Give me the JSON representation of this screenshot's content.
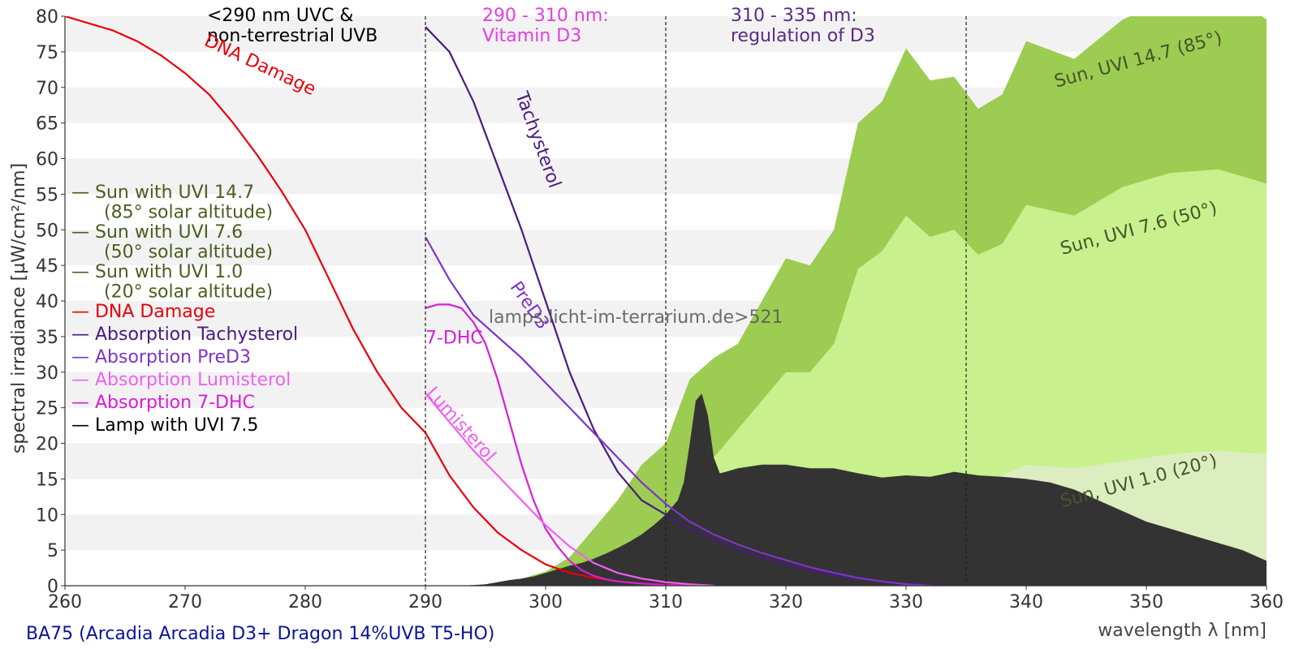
{
  "chart_data": {
    "type": "area",
    "xlabel": "wavelength λ [nm]",
    "ylabel": "spectral irradiance [µW/cm²/nm]",
    "xlim": [
      260,
      360
    ],
    "ylim": [
      0,
      80
    ],
    "xticks": [
      260,
      270,
      280,
      290,
      300,
      310,
      320,
      330,
      340,
      350,
      360
    ],
    "yticks": [
      0,
      5,
      10,
      15,
      20,
      25,
      30,
      35,
      40,
      45,
      50,
      55,
      60,
      65,
      70,
      75,
      80
    ],
    "grid": "horizontal bands",
    "footer": "BA75 (Arcadia Arcadia D3+ Dragon 14%UVB T5-HO)",
    "watermark": "lamps.licht-im-terrarium.de>521",
    "regions": [
      {
        "x": 290,
        "label_lines": [
          "<290 nm UVC &",
          "non-terrestrial UVB"
        ],
        "color": "#000000"
      },
      {
        "x": 310,
        "label_lines": [
          "290 - 310 nm:",
          "Vitamin D3"
        ],
        "color": "#e040e0"
      },
      {
        "x": 335,
        "label_lines": [
          "310 - 335 nm:",
          "regulation of D3"
        ],
        "color": "#5b2a86"
      }
    ],
    "legend": [
      {
        "lines": [
          "— Sun with UVI 14.7",
          "(85° solar altitude)"
        ],
        "color": "#4a5e1e"
      },
      {
        "lines": [
          "— Sun with UVI 7.6",
          "(50° solar altitude)"
        ],
        "color": "#4a5e1e"
      },
      {
        "lines": [
          "— Sun with UVI 1.0",
          "(20° solar altitude)"
        ],
        "color": "#4a5e1e"
      },
      {
        "lines": [
          "— DNA Damage"
        ],
        "color": "#e8000b"
      },
      {
        "lines": [
          "— Absorption Tachysterol"
        ],
        "color": "#4b1a7e"
      },
      {
        "lines": [
          "— Absorption PreD3"
        ],
        "color": "#7d35c8"
      },
      {
        "lines": [
          "— Absorption Lumisterol"
        ],
        "color": "#f060f0"
      },
      {
        "lines": [
          "— Absorption 7-DHC"
        ],
        "color": "#d81ed8"
      },
      {
        "lines": [
          "— Lamp with UVI 7.5"
        ],
        "color": "#000000"
      }
    ],
    "series": [
      {
        "name": "Sun, UVI 14.7 (85°)",
        "kind": "area",
        "color": "#9ccc52",
        "x": [
          294,
          296,
          298,
          300,
          302,
          304,
          306,
          308,
          310,
          312,
          314,
          316,
          318,
          320,
          322,
          324,
          326,
          328,
          330,
          332,
          334,
          336,
          338,
          340,
          344,
          348,
          352,
          356,
          360
        ],
        "y": [
          0,
          0.3,
          1,
          2,
          4,
          8,
          12,
          17,
          20,
          29,
          32,
          34,
          40,
          46,
          45,
          50,
          65,
          68,
          75.5,
          71,
          71.5,
          67,
          69,
          76.5,
          74,
          79.5,
          82.5,
          84.5,
          79.5
        ]
      },
      {
        "name": "Sun, UVI 7.6 (50°)",
        "kind": "area",
        "color": "#c8f08c",
        "x": [
          296,
          298,
          300,
          302,
          304,
          306,
          308,
          310,
          312,
          314,
          316,
          318,
          320,
          322,
          324,
          326,
          328,
          330,
          332,
          334,
          336,
          338,
          340,
          344,
          348,
          352,
          356,
          360
        ],
        "y": [
          0,
          0.2,
          0.5,
          1.5,
          3,
          5,
          7,
          9,
          12,
          18,
          22,
          26,
          30,
          30,
          34,
          44.5,
          47,
          52,
          49,
          50,
          46.5,
          48,
          53.5,
          52,
          56,
          58,
          58.5,
          56.5
        ]
      },
      {
        "name": "Sun, UVI 1.0 (20°)",
        "kind": "area",
        "color": "#dcedc0",
        "x": [
          300,
          304,
          308,
          312,
          316,
          320,
          324,
          328,
          332,
          336,
          340,
          344,
          348,
          352,
          356,
          360
        ],
        "y": [
          0,
          0.2,
          0.6,
          1.5,
          3,
          5,
          7,
          9,
          11.5,
          14,
          17,
          16.5,
          17.5,
          18.5,
          19,
          18.5
        ]
      },
      {
        "name": "Lamp with UVI 7.5",
        "kind": "area",
        "color": "#333333",
        "x": [
          293,
          295,
          296,
          297,
          298,
          299,
          300,
          301,
          302,
          303,
          304,
          305,
          306,
          307,
          308,
          309,
          310,
          311,
          311.5,
          312,
          312.5,
          313,
          313.5,
          314,
          314.5,
          315,
          316,
          318,
          320,
          322,
          324,
          326,
          328,
          330,
          332,
          334,
          336,
          338,
          340,
          342,
          344,
          346,
          348,
          350,
          352,
          354,
          356,
          358,
          360
        ],
        "y": [
          0,
          0.2,
          0.5,
          0.8,
          1,
          1.3,
          1.8,
          2.3,
          2.8,
          3.2,
          3.8,
          4.5,
          5.3,
          6.2,
          7.2,
          8.5,
          10,
          12,
          14.5,
          20,
          26,
          27,
          24,
          18,
          15.8,
          16,
          16.5,
          17,
          17,
          16.5,
          16.5,
          15.8,
          15.2,
          15.5,
          15.3,
          16,
          15.5,
          15.3,
          15,
          14.5,
          13.5,
          12,
          10.5,
          9,
          8,
          7,
          6,
          5,
          3.5
        ]
      },
      {
        "name": "DNA Damage",
        "kind": "line",
        "color": "#e8000b",
        "label": "DNA Damage",
        "x": [
          260,
          262,
          264,
          266,
          268,
          270,
          272,
          274,
          276,
          278,
          280,
          282,
          284,
          286,
          288,
          290,
          292,
          294,
          296,
          298,
          300,
          302,
          304,
          306,
          308,
          310,
          312,
          314
        ],
        "y": [
          80,
          79,
          78,
          76.5,
          74.5,
          72,
          69,
          65,
          60.5,
          55.5,
          50,
          43,
          36,
          30,
          25,
          21.5,
          15.5,
          11,
          7.5,
          5,
          3,
          1.8,
          1.1,
          0.6,
          0.3,
          0.15,
          0.05,
          0
        ]
      },
      {
        "name": "Absorption Tachysterol",
        "kind": "line",
        "color": "#4b1a7e",
        "label": "Tachysterol",
        "x": [
          290,
          292,
          294,
          296,
          298,
          300,
          302,
          304,
          306,
          308,
          310,
          312,
          314,
          316,
          318,
          320,
          322,
          324,
          326,
          328,
          330,
          332,
          334
        ],
        "y": [
          78.5,
          75,
          68,
          59,
          50,
          40,
          30,
          22,
          16,
          12,
          10,
          8,
          6.5,
          5,
          4,
          3,
          2.2,
          1.5,
          1,
          0.6,
          0.3,
          0.1,
          0
        ]
      },
      {
        "name": "Absorption PreD3",
        "kind": "line",
        "color": "#7d35c8",
        "label": "PreD3",
        "x": [
          290,
          292,
          294,
          296,
          298,
          300,
          302,
          304,
          306,
          308,
          310,
          312,
          314,
          316,
          318,
          320,
          322,
          324,
          326,
          328,
          330,
          332
        ],
        "y": [
          49,
          43,
          38,
          35,
          32,
          28.5,
          25,
          21.5,
          18,
          14.5,
          11.5,
          9,
          7.2,
          5.8,
          4.6,
          3.6,
          2.6,
          1.8,
          1.1,
          0.6,
          0.2,
          0
        ]
      },
      {
        "name": "Absorption 7-DHC",
        "kind": "line",
        "color": "#d81ed8",
        "label": "7-DHC",
        "x": [
          290,
          291,
          292,
          293,
          294,
          295,
          296,
          297,
          298,
          299,
          300,
          301,
          302,
          303,
          304,
          305,
          306,
          308,
          310,
          312,
          314
        ],
        "y": [
          39,
          39.5,
          39.5,
          39,
          37,
          34,
          29,
          23,
          17,
          12,
          8,
          5.5,
          3.5,
          2.2,
          1.4,
          0.9,
          0.6,
          0.3,
          0.1,
          0.05,
          0
        ]
      },
      {
        "name": "Absorption Lumisterol",
        "kind": "line",
        "color": "#f060f0",
        "label": "Lumisterol",
        "x": [
          290,
          292,
          294,
          296,
          298,
          300,
          302,
          304,
          306,
          308,
          310,
          312,
          314
        ],
        "y": [
          27,
          23,
          19,
          15.5,
          12,
          8.5,
          5.5,
          3.2,
          1.8,
          1,
          0.5,
          0.2,
          0
        ]
      }
    ],
    "annotations": [
      {
        "text": "DNA Damage",
        "x": 271.5,
        "y": 76,
        "angle": 25,
        "color": "#e8000b"
      },
      {
        "text": "Tachysterol",
        "x": 297.5,
        "y": 69,
        "angle": 70,
        "color": "#4b1a7e"
      },
      {
        "text": "PreD3",
        "x": 297,
        "y": 42,
        "angle": 55,
        "color": "#7d35c8"
      },
      {
        "text": "7-DHC",
        "x": 290,
        "y": 34,
        "angle": 0,
        "color": "#d81ed8"
      },
      {
        "text": "Lumisterol",
        "x": 290,
        "y": 27,
        "angle": 48,
        "color": "#f060f0"
      },
      {
        "text": "Sun, UVI 14.7 (85°)",
        "x": 342.5,
        "y": 70,
        "angle": -15,
        "color": "#44552a"
      },
      {
        "text": "Sun, UVI 7.6 (50°)",
        "x": 343,
        "y": 46.5,
        "angle": -15,
        "color": "#44552a"
      },
      {
        "text": "Sun, UVI 1.0 (20°)",
        "x": 343,
        "y": 11,
        "angle": -15,
        "color": "#44552a"
      }
    ]
  }
}
